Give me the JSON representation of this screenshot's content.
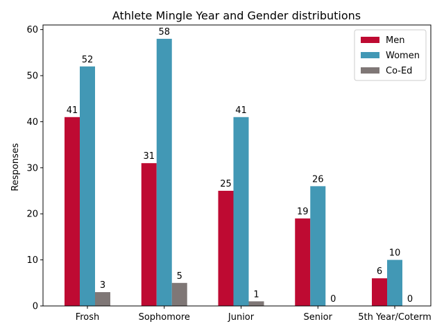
{
  "chart_data": {
    "type": "bar",
    "title": "Athlete Mingle Year and Gender distributions",
    "xlabel": "",
    "ylabel": "Responses",
    "categories": [
      "Frosh",
      "Sophomore",
      "Junior",
      "Senior",
      "5th Year/Coterm"
    ],
    "series": [
      {
        "name": "Men",
        "values": [
          41,
          31,
          25,
          19,
          6
        ],
        "color": "#be0a32"
      },
      {
        "name": "Women",
        "values": [
          52,
          58,
          41,
          26,
          10
        ],
        "color": "#4298b5"
      },
      {
        "name": "Co-Ed",
        "values": [
          3,
          5,
          1,
          0,
          0
        ],
        "color": "#7f7776"
      }
    ],
    "ylim": [
      0,
      61
    ],
    "yticks": [
      0,
      10,
      20,
      30,
      40,
      50,
      60
    ],
    "grid": false,
    "legend_position": "top-right"
  }
}
